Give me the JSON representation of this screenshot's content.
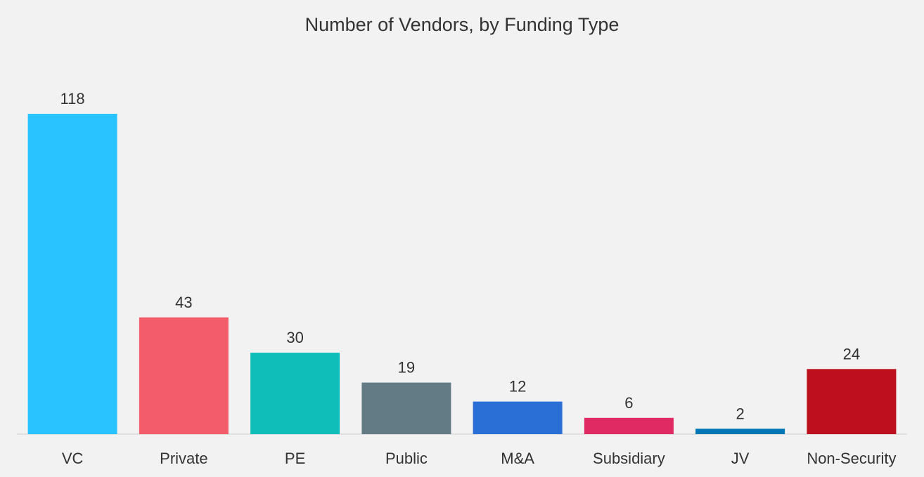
{
  "chart_data": {
    "type": "bar",
    "title": "Number of Vendors, by Funding Type",
    "xlabel": "",
    "ylabel": "",
    "categories": [
      "VC",
      "Private",
      "PE",
      "Public",
      "M&A",
      "Subsidiary",
      "JV",
      "Non-Security"
    ],
    "values": [
      118,
      43,
      30,
      19,
      12,
      6,
      2,
      24
    ],
    "value_labels": [
      "118",
      "43",
      "30",
      "19",
      "12",
      "6",
      "2",
      "24"
    ],
    "colors": [
      "#29c4ff",
      "#f25c6b",
      "#0fbdb9",
      "#627b85",
      "#2a6fd6",
      "#e02a63",
      "#0077b5",
      "#bd0f1d"
    ],
    "ylim": [
      0,
      118
    ],
    "grid": false,
    "legend": "none",
    "baseline_color": "#d9d9d9"
  }
}
